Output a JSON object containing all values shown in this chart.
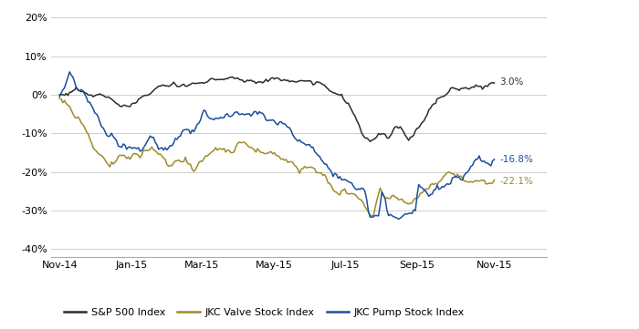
{
  "sp500_color": "#2d2d2d",
  "valve_color": "#a08c2a",
  "pump_color": "#1a4f9c",
  "label_sp500": "3.0%",
  "label_valve": "-22.1%",
  "label_pump": "-16.8%",
  "ylim": [
    -0.42,
    0.22
  ],
  "yticks": [
    -0.4,
    -0.3,
    -0.2,
    -0.1,
    0.0,
    0.1,
    0.2
  ],
  "ytick_labels": [
    "-40%",
    "-30%",
    "-20%",
    "-10%",
    "0%",
    "10%",
    "20%"
  ],
  "xtick_labels": [
    "Nov-14",
    "Jan-15",
    "Mar-15",
    "May-15",
    "Jul-15",
    "Sep-15",
    "Nov-15"
  ],
  "xtick_positions": [
    0,
    43,
    85,
    128,
    170,
    213,
    259
  ],
  "legend_labels": [
    "S&P 500 Index",
    "JKC Valve Stock Index",
    "JKC Pump Stock Index"
  ],
  "background_color": "#ffffff",
  "grid_color": "#c8c8c8",
  "n_points": 260
}
